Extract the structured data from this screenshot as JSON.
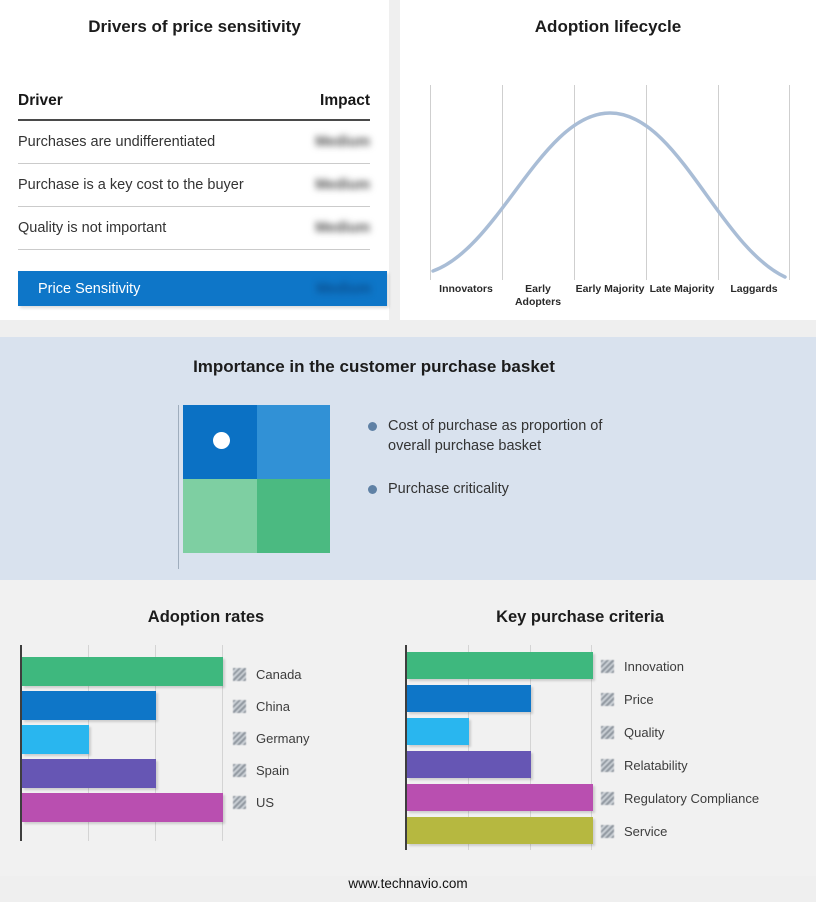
{
  "page": {
    "footer": "www.technavio.com"
  },
  "drivers": {
    "title": "Drivers of price sensitivity",
    "columns": {
      "driver": "Driver",
      "impact": "Impact"
    },
    "rows": [
      {
        "driver": "Purchases are undifferentiated",
        "impact": "Medium"
      },
      {
        "driver": "Purchase is a key cost to the buyer",
        "impact": "Medium"
      },
      {
        "driver": "Quality is not important",
        "impact": "Medium"
      }
    ],
    "summary": {
      "label": "Price Sensitivity",
      "impact": "Medium"
    },
    "accent_color": "#0e76c8"
  },
  "basket": {
    "title": "Importance in the customer purchase basket",
    "bullets": [
      "Cost of purchase as proportion of overall purchase basket",
      "Purchase criticality"
    ],
    "quadrant_colors": [
      "#0b71c4",
      "#3191d6",
      "#7ecfa2",
      "#4bba81"
    ]
  },
  "chart_data": [
    {
      "id": "adoption-lifecycle",
      "type": "line",
      "shape": "bell-curve",
      "title": "Adoption lifecycle",
      "x": [
        "Innovators",
        "Early Adopters",
        "Early Majority",
        "Late Majority",
        "Laggards"
      ],
      "values": [
        5,
        55,
        100,
        55,
        5
      ],
      "ylim": [
        0,
        100
      ],
      "line_color": "#a9bdd6",
      "grid": "vertical-dividers",
      "legend": "none"
    },
    {
      "id": "adoption-rates",
      "type": "bar",
      "orientation": "horizontal",
      "title": "Adoption rates",
      "categories": [
        "Canada",
        "China",
        "Germany",
        "Spain",
        "US"
      ],
      "values": [
        3,
        2,
        1,
        2,
        3
      ],
      "xlim": [
        0,
        3
      ],
      "colors": [
        "#3eb87e",
        "#0e76c8",
        "#29b6ef",
        "#6656b4",
        "#b94fb0"
      ],
      "grid": "vertical",
      "legend_position": "right"
    },
    {
      "id": "key-purchase-criteria",
      "type": "bar",
      "orientation": "horizontal",
      "title": "Key purchase criteria",
      "categories": [
        "Innovation",
        "Price",
        "Quality",
        "Relatability",
        "Regulatory Compliance",
        "Service"
      ],
      "values": [
        3,
        2,
        1,
        2,
        3,
        3
      ],
      "xlim": [
        0,
        3
      ],
      "colors": [
        "#3eb87e",
        "#0e76c8",
        "#29b6ef",
        "#6656b4",
        "#b94fb0",
        "#b6b840"
      ],
      "grid": "vertical",
      "legend_position": "right"
    }
  ]
}
